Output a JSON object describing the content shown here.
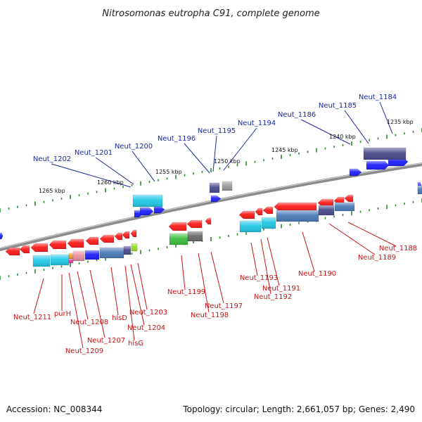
{
  "title": "Nitrosomonas eutropha C91, complete genome",
  "footer": {
    "accession": "Accession: NC_008344",
    "stats": "Topology: circular; Length: 2,661,057 bp; Genes: 2,490"
  },
  "colors": {
    "forward_gene": "#1e1eff",
    "reverse_gene": "#ff1a1a",
    "backbone": "#8c8c8c",
    "tick": "#2a8a2a",
    "label_forward": "#1a2aa0",
    "label_reverse": "#c81414",
    "cog_cyan": "#22c8e6",
    "cog_steel": "#4a7ab8",
    "cog_slate": "#4b4b8c",
    "cog_green": "#3cbf3c",
    "cog_grey": "#9a9a9a"
  },
  "scale_labels": [
    "1235 kbp",
    "1240 kbp",
    "1245 kbp",
    "1250 kbp",
    "1255 kbp",
    "1260 kbp",
    "1265 kbp"
  ],
  "upper_labels": [
    "Neut_1184",
    "Neut_1185",
    "Neut_1186",
    "Neut_1194",
    "Neut_1195",
    "Neut_1196",
    "Neut_1200",
    "Neut_1201",
    "Neut_1202"
  ],
  "lower_labels": [
    "Neut_1188",
    "Neut_1189",
    "Neut_1190",
    "Neut_1191",
    "Neut_1192",
    "Neut_1193",
    "Neut_1197",
    "Neut_1198",
    "Neut_1199",
    "Neut_1203",
    "Neut_1204",
    "hisG",
    "hisD",
    "Neut_1207",
    "Neut_1208",
    "Neut_1209",
    "purH",
    "Neut_1211"
  ]
}
